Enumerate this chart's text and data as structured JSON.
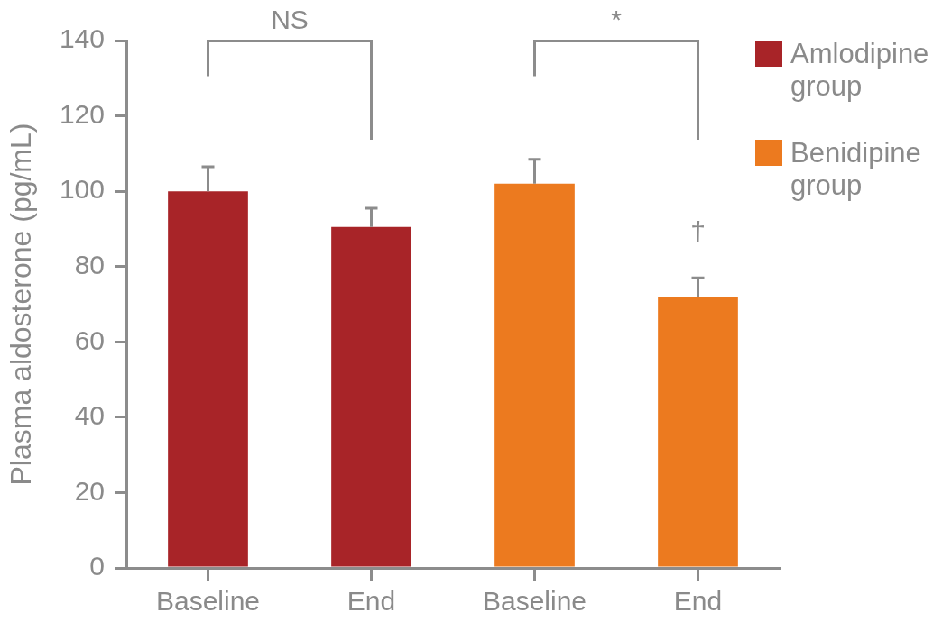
{
  "chart_data": {
    "type": "bar",
    "ylabel": "Plasma aldosterone (pg/mL)",
    "categories": [
      "Baseline",
      "End",
      "Baseline",
      "End"
    ],
    "series": [
      {
        "name": "Amlodipine group",
        "color": "#a82428",
        "values": [
          100,
          90.5,
          null,
          null
        ],
        "errors": [
          [
            100,
            106.5
          ],
          [
            90.5,
            95.5
          ],
          null,
          null
        ]
      },
      {
        "name": "Benidipine group",
        "color": "#ec7a1f",
        "values": [
          null,
          null,
          102,
          72
        ],
        "errors": [
          null,
          null,
          [
            102,
            108.5
          ],
          [
            72,
            77
          ]
        ]
      }
    ],
    "ylim": [
      0,
      140
    ],
    "yticks": [
      0,
      20,
      40,
      60,
      80,
      100,
      120,
      140
    ],
    "legend": "right",
    "annotations": [
      "NS",
      "*",
      "†"
    ]
  }
}
